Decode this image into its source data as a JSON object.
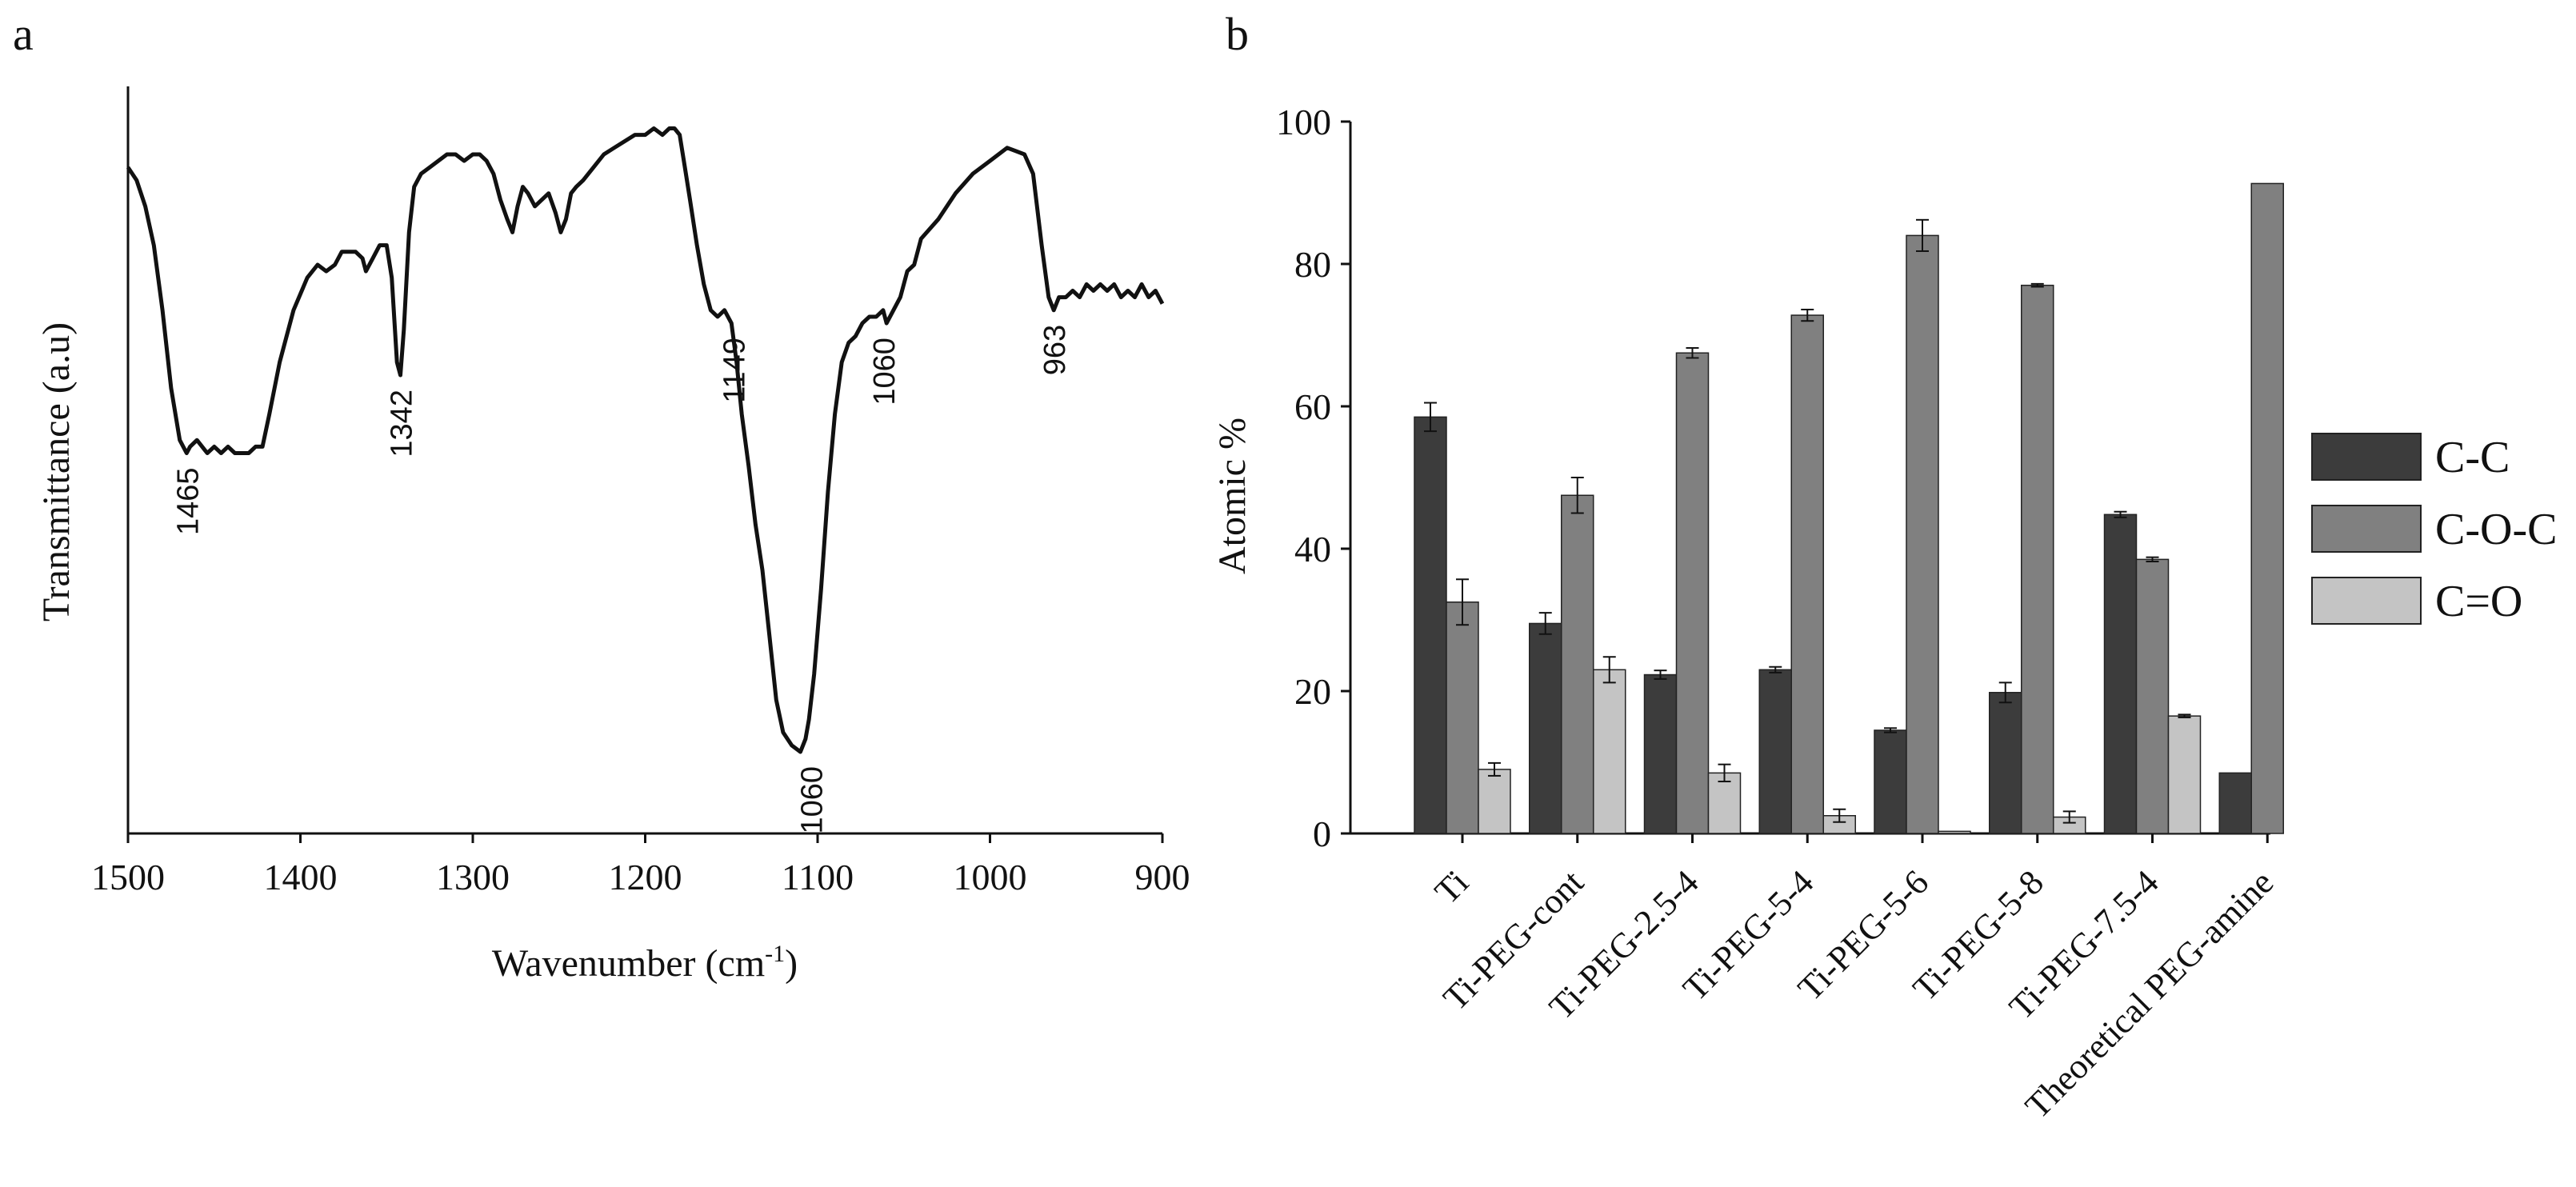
{
  "colors": {
    "line": "#111111",
    "C-C": "#3c3c3c",
    "C-O-C": "#808080",
    "C=O": "#c4c4c4"
  },
  "panels": [
    {
      "label": "a",
      "chart_data": {
        "type": "line",
        "xlabel_main": "Wavenumber (cm",
        "xlabel_sup": "-1",
        "xlabel_close": ")",
        "ylabel": "Transmittance (a.u)",
        "xlim": [
          1500,
          900
        ],
        "x_reversed": true,
        "ylim": [
          0,
          100
        ],
        "y_ticks_shown": false,
        "x_ticks": [
          "1500",
          "1400",
          "1300",
          "1200",
          "1100",
          "1000",
          "900"
        ],
        "series": [
          {
            "x": [
              1500,
              1495,
              1490,
              1485,
              1480,
              1475,
              1470,
              1466,
              1464,
              1460,
              1457,
              1454,
              1450,
              1446,
              1442,
              1438,
              1434,
              1430,
              1426,
              1422,
              1418,
              1412,
              1404,
              1396,
              1390,
              1385,
              1380,
              1376,
              1372,
              1368,
              1364,
              1362,
              1358,
              1354,
              1350,
              1347,
              1344,
              1342,
              1340,
              1337,
              1334,
              1330,
              1325,
              1320,
              1315,
              1310,
              1305,
              1300,
              1296,
              1292,
              1288,
              1284,
              1280,
              1277,
              1274,
              1271,
              1268,
              1264,
              1260,
              1256,
              1252,
              1249,
              1246,
              1243,
              1240,
              1236,
              1230,
              1224,
              1218,
              1212,
              1206,
              1200,
              1195,
              1190,
              1186,
              1183,
              1180,
              1177,
              1174,
              1170,
              1166,
              1162,
              1158,
              1154,
              1150,
              1147,
              1144,
              1140,
              1136,
              1132,
              1128,
              1124,
              1120,
              1115,
              1110,
              1107,
              1105,
              1102,
              1098,
              1094,
              1090,
              1086,
              1082,
              1078,
              1074,
              1070,
              1066,
              1062,
              1060,
              1056,
              1052,
              1048,
              1044,
              1040,
              1030,
              1020,
              1010,
              1000,
              990,
              980,
              975,
              970,
              966,
              963,
              960,
              956,
              952,
              948,
              944,
              940,
              936,
              932,
              928,
              924,
              920,
              916,
              912,
              908,
              904,
              900
            ],
            "y": [
              90,
              88,
              84,
              78,
              68,
              56,
              48,
              46,
              47,
              48,
              47,
              46,
              47,
              46,
              47,
              46,
              46,
              46,
              47,
              47,
              52,
              60,
              68,
              73,
              75,
              74,
              75,
              77,
              77,
              77,
              76,
              74,
              76,
              78,
              78,
              73,
              60,
              58,
              65,
              80,
              87,
              89,
              90,
              91,
              92,
              92,
              91,
              92,
              92,
              91,
              89,
              85,
              82,
              80,
              84,
              87,
              86,
              84,
              85,
              86,
              83,
              80,
              82,
              86,
              87,
              88,
              90,
              92,
              93,
              94,
              95,
              95,
              96,
              95,
              96,
              96,
              95,
              90,
              85,
              78,
              72,
              68,
              67,
              68,
              66,
              60,
              52,
              44,
              35,
              28,
              18,
              8,
              3,
              1,
              0,
              2,
              5,
              12,
              25,
              40,
              52,
              60,
              63,
              64,
              66,
              67,
              67,
              68,
              66,
              68,
              70,
              74,
              75,
              79,
              82,
              86,
              89,
              91,
              93,
              92,
              89,
              78,
              70,
              68,
              70,
              70,
              71,
              70,
              72,
              71,
              72,
              71,
              72,
              70,
              71,
              70,
              72,
              70,
              71,
              69
            ]
          }
        ],
        "annotations": [
          "1465",
          "1342",
          "1149",
          "1060",
          "1060",
          "963"
        ]
      }
    },
    {
      "label": "b",
      "chart_data": {
        "type": "bar",
        "ylabel": "Atomic %",
        "ylim": [
          0,
          100
        ],
        "y_ticks": [
          "0",
          "20",
          "40",
          "60",
          "80",
          "100"
        ],
        "legend_position": "right",
        "categories": [
          "Ti",
          "Ti-PEG-cont",
          "Ti-PEG-2.5-4",
          "Ti-PEG-5-4",
          "Ti-PEG-5-6",
          "Ti-PEG-5-8",
          "Ti-PEG-7.5-4",
          "Theoretical PEG-amine"
        ],
        "series": [
          {
            "name": "C-C",
            "values": [
              58.5,
              29.5,
              22.3,
              23.0,
              14.5,
              19.8,
              44.8,
              8.5
            ],
            "errors": [
              2.0,
              1.5,
              0.6,
              0.4,
              0.3,
              1.4,
              0.4,
              0.0
            ]
          },
          {
            "name": "C-O-C",
            "values": [
              32.5,
              47.5,
              67.5,
              72.8,
              84.0,
              77.0,
              38.5,
              91.3
            ],
            "errors": [
              3.2,
              2.5,
              0.7,
              0.8,
              2.2,
              0.2,
              0.3,
              0.0
            ]
          },
          {
            "name": "C=O",
            "values": [
              9.0,
              23.0,
              8.5,
              2.5,
              0.3,
              2.3,
              16.5,
              null
            ],
            "errors": [
              0.9,
              1.8,
              1.2,
              0.9,
              0.0,
              0.8,
              0.2,
              0.0
            ]
          }
        ]
      }
    }
  ]
}
